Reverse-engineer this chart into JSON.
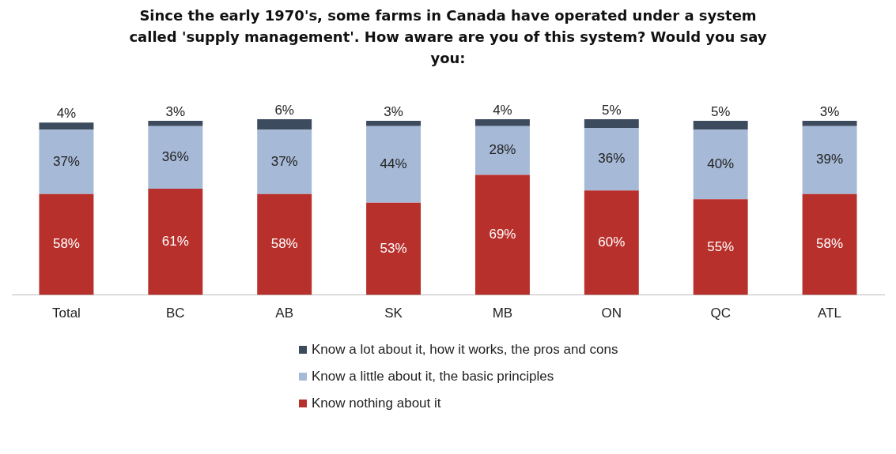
{
  "chart_data": {
    "type": "bar",
    "stacked": true,
    "title": "Since the early 1970's, some farms in Canada have operated under a system called 'supply management'. How aware are you of this system? Would you say you:",
    "categories": [
      "Total",
      "BC",
      "AB",
      "SK",
      "MB",
      "ON",
      "QC",
      "ATL"
    ],
    "series": [
      {
        "name": "Know nothing about it",
        "color": "#b8302c",
        "values": [
          58,
          61,
          58,
          53,
          69,
          60,
          55,
          58
        ],
        "value_labels": [
          "58%",
          "61%",
          "58%",
          "53%",
          "69%",
          "60%",
          "55%",
          "58%"
        ]
      },
      {
        "name": "Know a little about it, the basic principles",
        "color": "#a6b9d6",
        "values": [
          37,
          36,
          37,
          44,
          28,
          36,
          40,
          39
        ],
        "value_labels": [
          "37%",
          "36%",
          "37%",
          "44%",
          "28%",
          "36%",
          "40%",
          "39%"
        ]
      },
      {
        "name": "Know a lot about it, how it works, the pros and cons",
        "color": "#3d4b5f",
        "values": [
          4,
          3,
          6,
          3,
          4,
          5,
          5,
          3
        ],
        "value_labels": [
          "4%",
          "3%",
          "6%",
          "3%",
          "4%",
          "5%",
          "5%",
          "3%"
        ]
      }
    ],
    "legend": "bottom",
    "grid": false,
    "tick_labels": "x"
  }
}
